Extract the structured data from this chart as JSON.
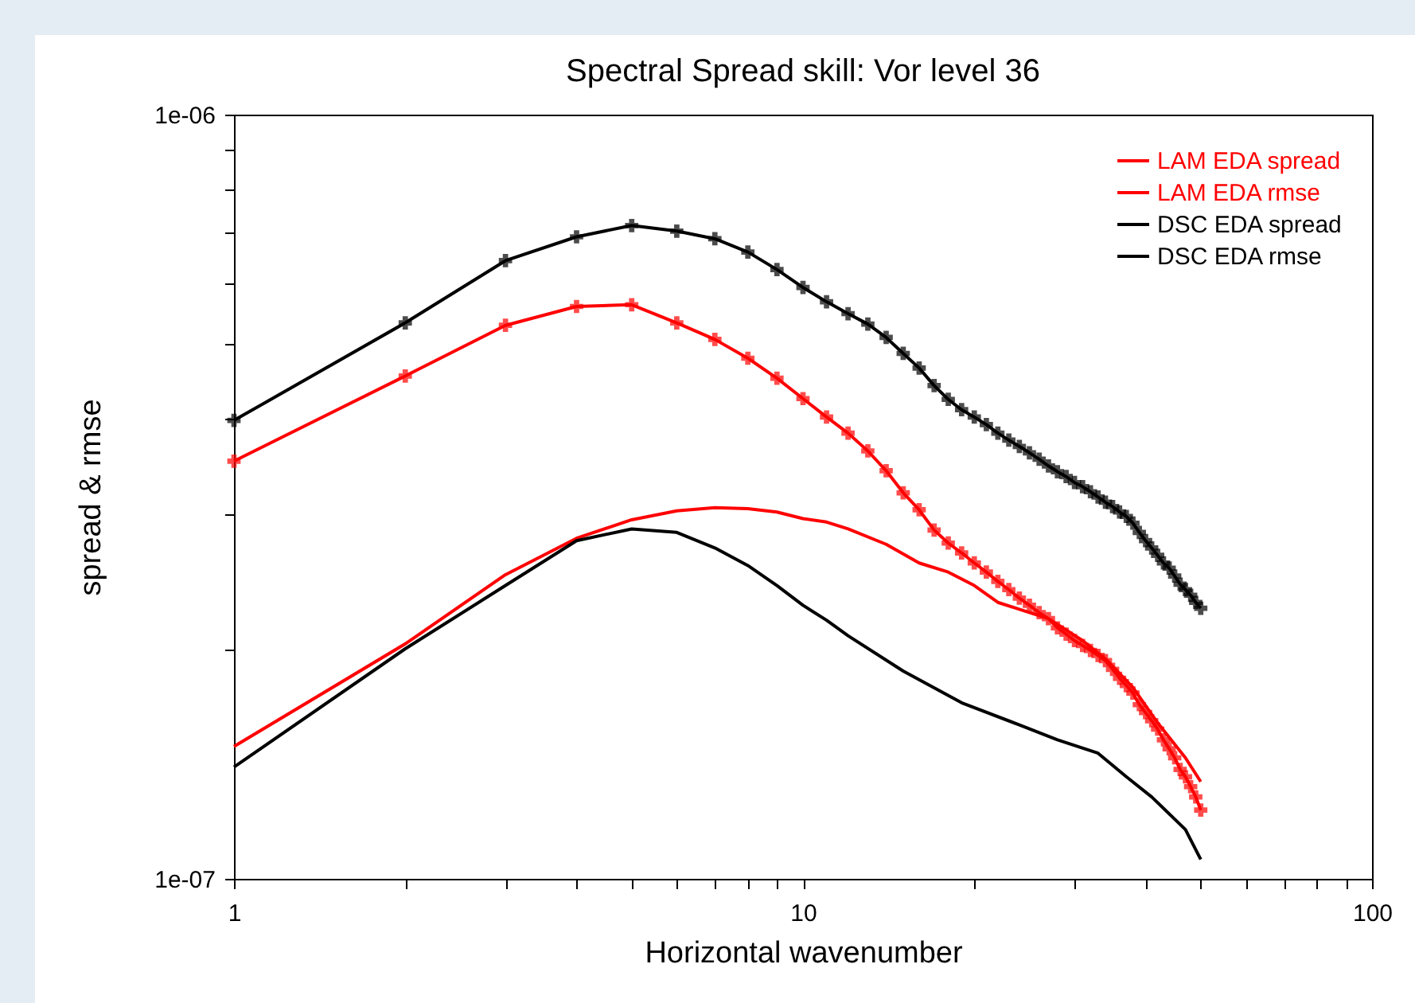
{
  "chart_data": {
    "type": "line",
    "title": "Spectral Spread skill: Vor level 36",
    "xlabel": "Horizontal wavenumber",
    "ylabel": "spread & rmse",
    "log": "xy",
    "legend": "top right",
    "grid": false,
    "xlim": [
      1,
      100
    ],
    "ylim": [
      1e-07,
      1e-06
    ],
    "xticks": [
      1,
      {
        "value": 2,
        "label": null
      },
      {
        "value": 3,
        "label": null
      },
      {
        "value": 4,
        "label": null
      },
      {
        "value": 5,
        "label": null
      },
      {
        "value": 6,
        "label": null
      },
      {
        "value": 7,
        "label": null
      },
      {
        "value": 8,
        "label": null
      },
      {
        "value": 9,
        "label": null
      },
      10,
      {
        "value": 20,
        "label": null
      },
      {
        "value": 30,
        "label": null
      },
      {
        "value": 40,
        "label": null
      },
      {
        "value": 50,
        "label": null
      },
      {
        "value": 60,
        "label": null
      },
      {
        "value": 70,
        "label": null
      },
      {
        "value": 80,
        "label": null
      },
      {
        "value": 90,
        "label": null
      },
      100
    ],
    "yticks": [
      {
        "value": 1e-07,
        "label": "1e-07"
      },
      {
        "value": 2e-07,
        "label": null
      },
      {
        "value": 3e-07,
        "label": null
      },
      {
        "value": 4e-07,
        "label": null
      },
      {
        "value": 5e-07,
        "label": null
      },
      {
        "value": 6e-07,
        "label": null
      },
      {
        "value": 7e-07,
        "label": null
      },
      {
        "value": 8e-07,
        "label": null
      },
      {
        "value": 9e-07,
        "label": null
      },
      {
        "value": 1e-06,
        "label": "1e-06"
      }
    ],
    "series": [
      {
        "name": "LAM EDA spread",
        "color": "#ff0000",
        "marker": "none",
        "x": [
          1,
          2,
          3,
          4,
          5,
          6,
          7,
          8,
          9,
          10,
          11,
          12,
          14,
          16,
          18,
          20,
          22,
          27,
          31,
          34,
          38,
          42,
          47,
          50
        ],
        "values": [
          1.49e-07,
          2.03e-07,
          2.5e-07,
          2.79e-07,
          2.95e-07,
          3.03e-07,
          3.06e-07,
          3.05e-07,
          3.02e-07,
          2.96e-07,
          2.93e-07,
          2.87e-07,
          2.74e-07,
          2.59e-07,
          2.52e-07,
          2.42e-07,
          2.3e-07,
          2.19e-07,
          2.05e-07,
          1.94e-07,
          1.78e-07,
          1.6e-07,
          1.44e-07,
          1.34e-07
        ]
      },
      {
        "name": "LAM EDA rmse",
        "color": "#ff0000",
        "marker": "cross",
        "x": [
          1,
          2,
          3,
          4,
          5,
          6,
          7,
          8,
          9,
          10,
          11,
          12,
          13,
          14,
          15,
          16,
          17,
          18,
          19,
          20,
          21,
          22,
          23,
          24,
          25,
          26,
          27,
          28,
          29,
          30,
          31,
          32,
          33,
          34,
          35,
          36,
          37,
          38,
          39,
          40,
          41,
          42,
          43,
          44,
          45,
          46,
          47,
          48,
          49,
          50
        ],
        "values": [
          3.52e-07,
          4.55e-07,
          5.3e-07,
          5.61e-07,
          5.64e-07,
          5.34e-07,
          5.08e-07,
          4.8e-07,
          4.52e-07,
          4.25e-07,
          4.02e-07,
          3.83e-07,
          3.63e-07,
          3.42e-07,
          3.2e-07,
          3.04e-07,
          2.86e-07,
          2.75e-07,
          2.67e-07,
          2.59e-07,
          2.52e-07,
          2.45e-07,
          2.39e-07,
          2.33e-07,
          2.28e-07,
          2.23e-07,
          2.19e-07,
          2.13e-07,
          2.09e-07,
          2.05e-07,
          2.02e-07,
          1.99e-07,
          1.96e-07,
          1.93e-07,
          1.88e-07,
          1.83e-07,
          1.79e-07,
          1.75e-07,
          1.69e-07,
          1.65e-07,
          1.61e-07,
          1.57e-07,
          1.52e-07,
          1.48e-07,
          1.44e-07,
          1.39e-07,
          1.36e-07,
          1.32e-07,
          1.28e-07,
          1.23e-07
        ]
      },
      {
        "name": "DSC EDA spread",
        "color": "#000000",
        "marker": "none",
        "x": [
          1,
          2,
          3,
          4,
          5,
          6,
          7,
          8,
          9,
          10,
          11,
          12,
          15,
          19,
          24,
          28,
          33,
          37,
          41,
          47,
          50
        ],
        "values": [
          1.4e-07,
          2e-07,
          2.42e-07,
          2.77e-07,
          2.87e-07,
          2.84e-07,
          2.71e-07,
          2.57e-07,
          2.42e-07,
          2.28e-07,
          2.18e-07,
          2.08e-07,
          1.87e-07,
          1.7e-07,
          1.59e-07,
          1.52e-07,
          1.46e-07,
          1.36e-07,
          1.28e-07,
          1.16e-07,
          1.06e-07
        ]
      },
      {
        "name": "DSC EDA rmse",
        "color": "#000000",
        "marker": "cross",
        "x": [
          1,
          2,
          3,
          4,
          5,
          6,
          7,
          8,
          9,
          10,
          11,
          12,
          13,
          14,
          15,
          16,
          17,
          18,
          19,
          20,
          21,
          22,
          23,
          24,
          25,
          26,
          27,
          28,
          29,
          30,
          31,
          32,
          33,
          34,
          35,
          36,
          37,
          38,
          39,
          40,
          41,
          42,
          43,
          44,
          45,
          46,
          47,
          48,
          49,
          50
        ],
        "values": [
          3.98e-07,
          5.34e-07,
          6.44e-07,
          6.92e-07,
          7.16e-07,
          7.04e-07,
          6.88e-07,
          6.61e-07,
          6.27e-07,
          5.94e-07,
          5.69e-07,
          5.49e-07,
          5.32e-07,
          5.11e-07,
          4.87e-07,
          4.66e-07,
          4.42e-07,
          4.24e-07,
          4.11e-07,
          4.02e-07,
          3.93e-07,
          3.83e-07,
          3.75e-07,
          3.68e-07,
          3.61e-07,
          3.54e-07,
          3.47e-07,
          3.41e-07,
          3.36e-07,
          3.3e-07,
          3.26e-07,
          3.21e-07,
          3.16e-07,
          3.11e-07,
          3.07e-07,
          3.02e-07,
          2.98e-07,
          2.92e-07,
          2.84e-07,
          2.77e-07,
          2.71e-07,
          2.65e-07,
          2.59e-07,
          2.55e-07,
          2.49e-07,
          2.43e-07,
          2.39e-07,
          2.35e-07,
          2.3e-07,
          2.26e-07
        ]
      }
    ]
  }
}
